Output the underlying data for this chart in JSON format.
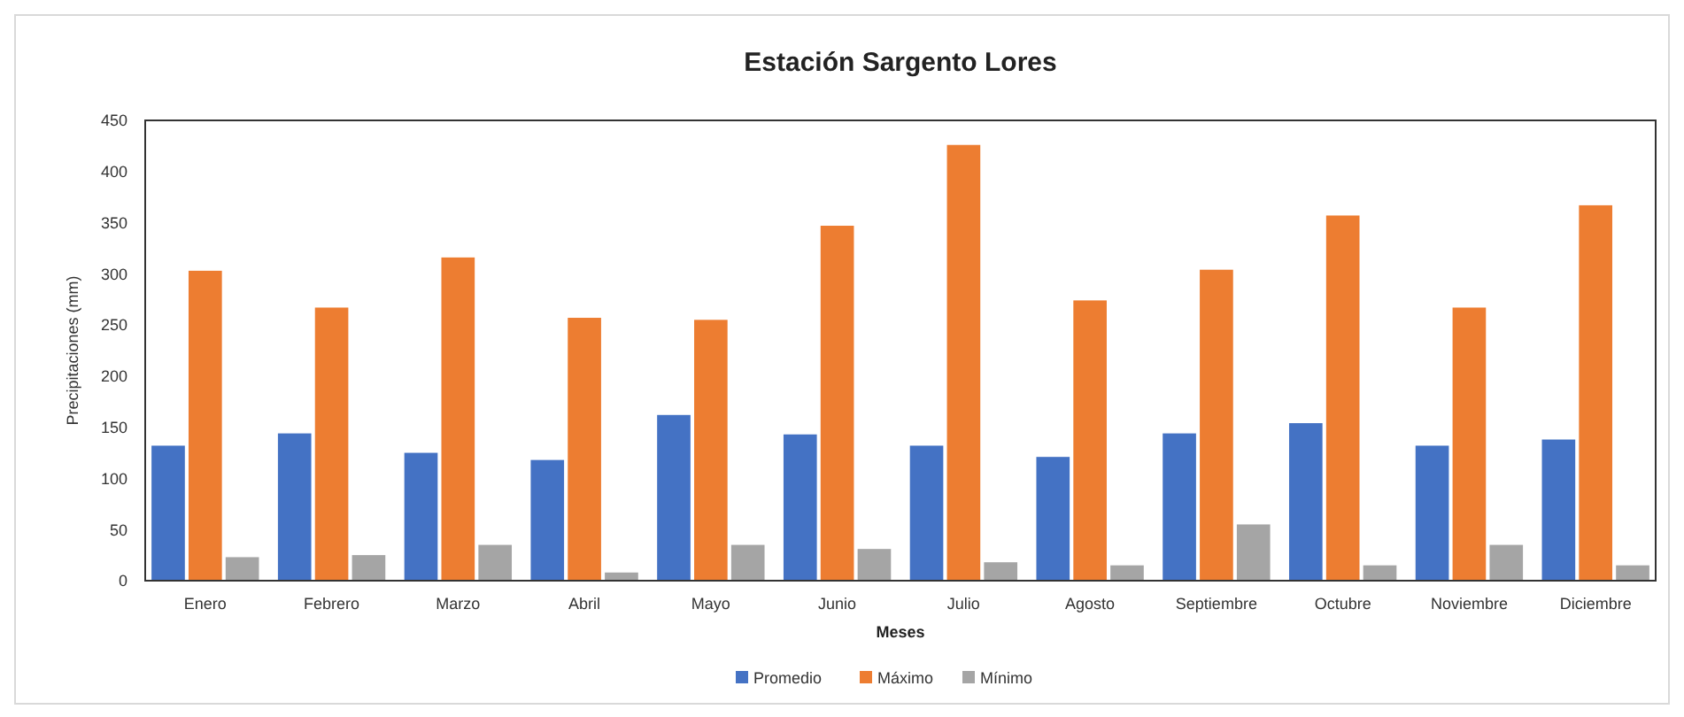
{
  "chart_data": {
    "type": "bar",
    "title": "Estación Sargento Lores",
    "xlabel": "Meses",
    "ylabel": "Precipitaciones (mm)",
    "categories": [
      "Enero",
      "Febrero",
      "Marzo",
      "Abril",
      "Mayo",
      "Junio",
      "Julio",
      "Agosto",
      "Septiembre",
      "Octubre",
      "Noviembre",
      "Diciembre"
    ],
    "series": [
      {
        "name": "Promedio",
        "color": "#4472c4",
        "values": [
          132,
          144,
          125,
          118,
          162,
          143,
          132,
          121,
          144,
          154,
          132,
          138
        ]
      },
      {
        "name": "Máximo",
        "color": "#ed7d31",
        "values": [
          303,
          267,
          316,
          257,
          255,
          347,
          426,
          274,
          304,
          357,
          267,
          367
        ]
      },
      {
        "name": "Mínimo",
        "color": "#a5a5a5",
        "values": [
          23,
          25,
          35,
          8,
          35,
          31,
          18,
          15,
          55,
          15,
          35,
          15
        ]
      }
    ],
    "ylim": [
      0,
      450
    ],
    "yticks": [
      0,
      50,
      100,
      150,
      200,
      250,
      300,
      350,
      400,
      450
    ],
    "grid": false,
    "legend": "bottom"
  }
}
